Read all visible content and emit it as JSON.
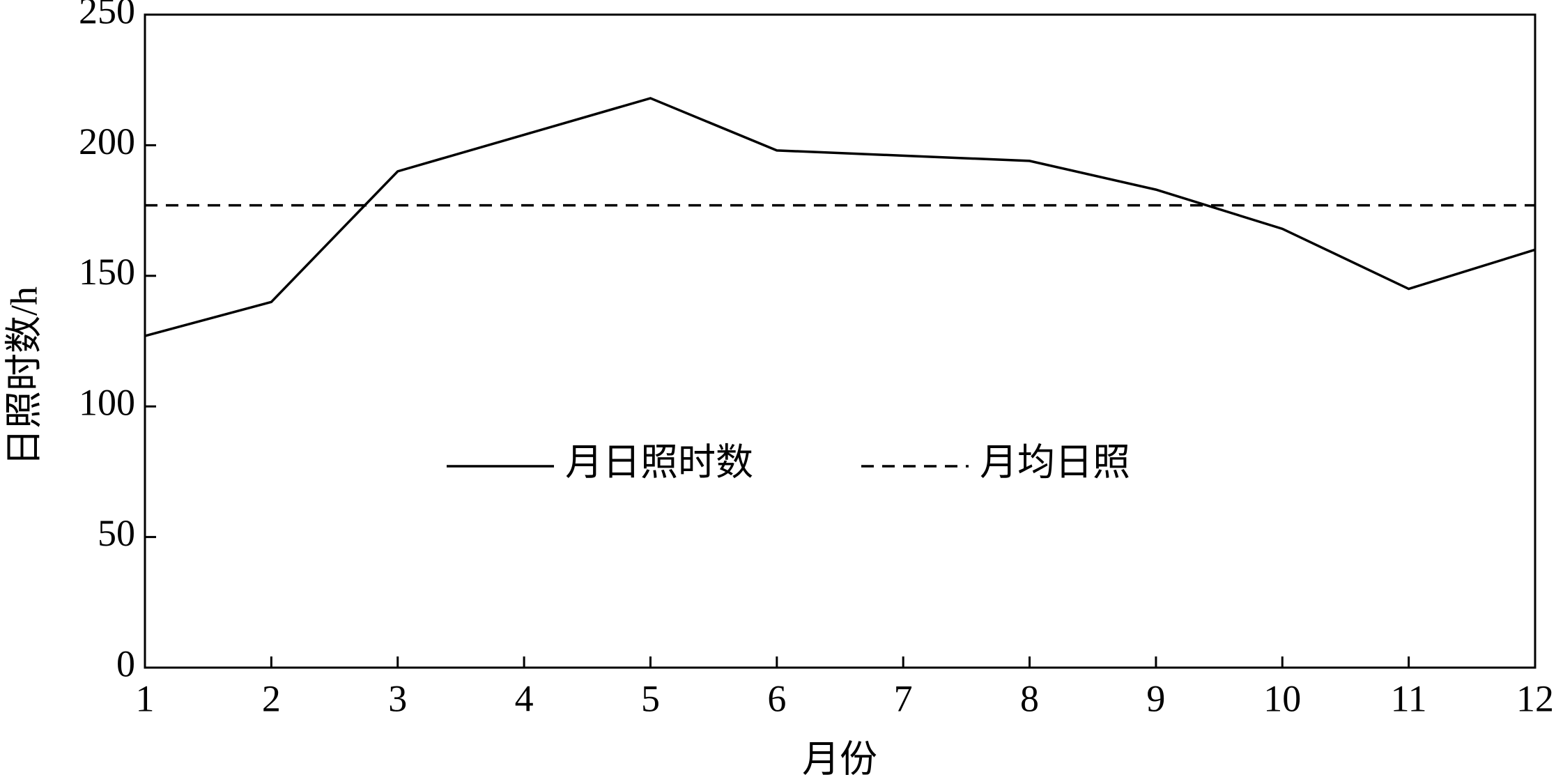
{
  "chart_data": {
    "type": "line",
    "x_label": "月份",
    "y_label": "日照时数/h",
    "x": [
      1,
      2,
      3,
      4,
      5,
      6,
      7,
      8,
      9,
      10,
      11,
      12
    ],
    "series": [
      {
        "name": "月日照时数",
        "color": "#000000",
        "dash": "solid",
        "values": [
          127,
          140,
          190,
          204,
          218,
          198,
          196,
          194,
          183,
          168,
          145,
          160
        ]
      },
      {
        "name": "月均日照",
        "color": "#000000",
        "dash": "dashed",
        "values": [
          177,
          177,
          177,
          177,
          177,
          177,
          177,
          177,
          177,
          177,
          177,
          177
        ]
      }
    ],
    "xlim": [
      1,
      12
    ],
    "xticks": [
      1,
      2,
      3,
      4,
      5,
      6,
      7,
      8,
      9,
      10,
      11,
      12
    ],
    "ylim": [
      0,
      250
    ],
    "yticks": [
      0,
      50,
      100,
      150,
      200,
      250
    ],
    "grid": false,
    "legend": "center"
  }
}
